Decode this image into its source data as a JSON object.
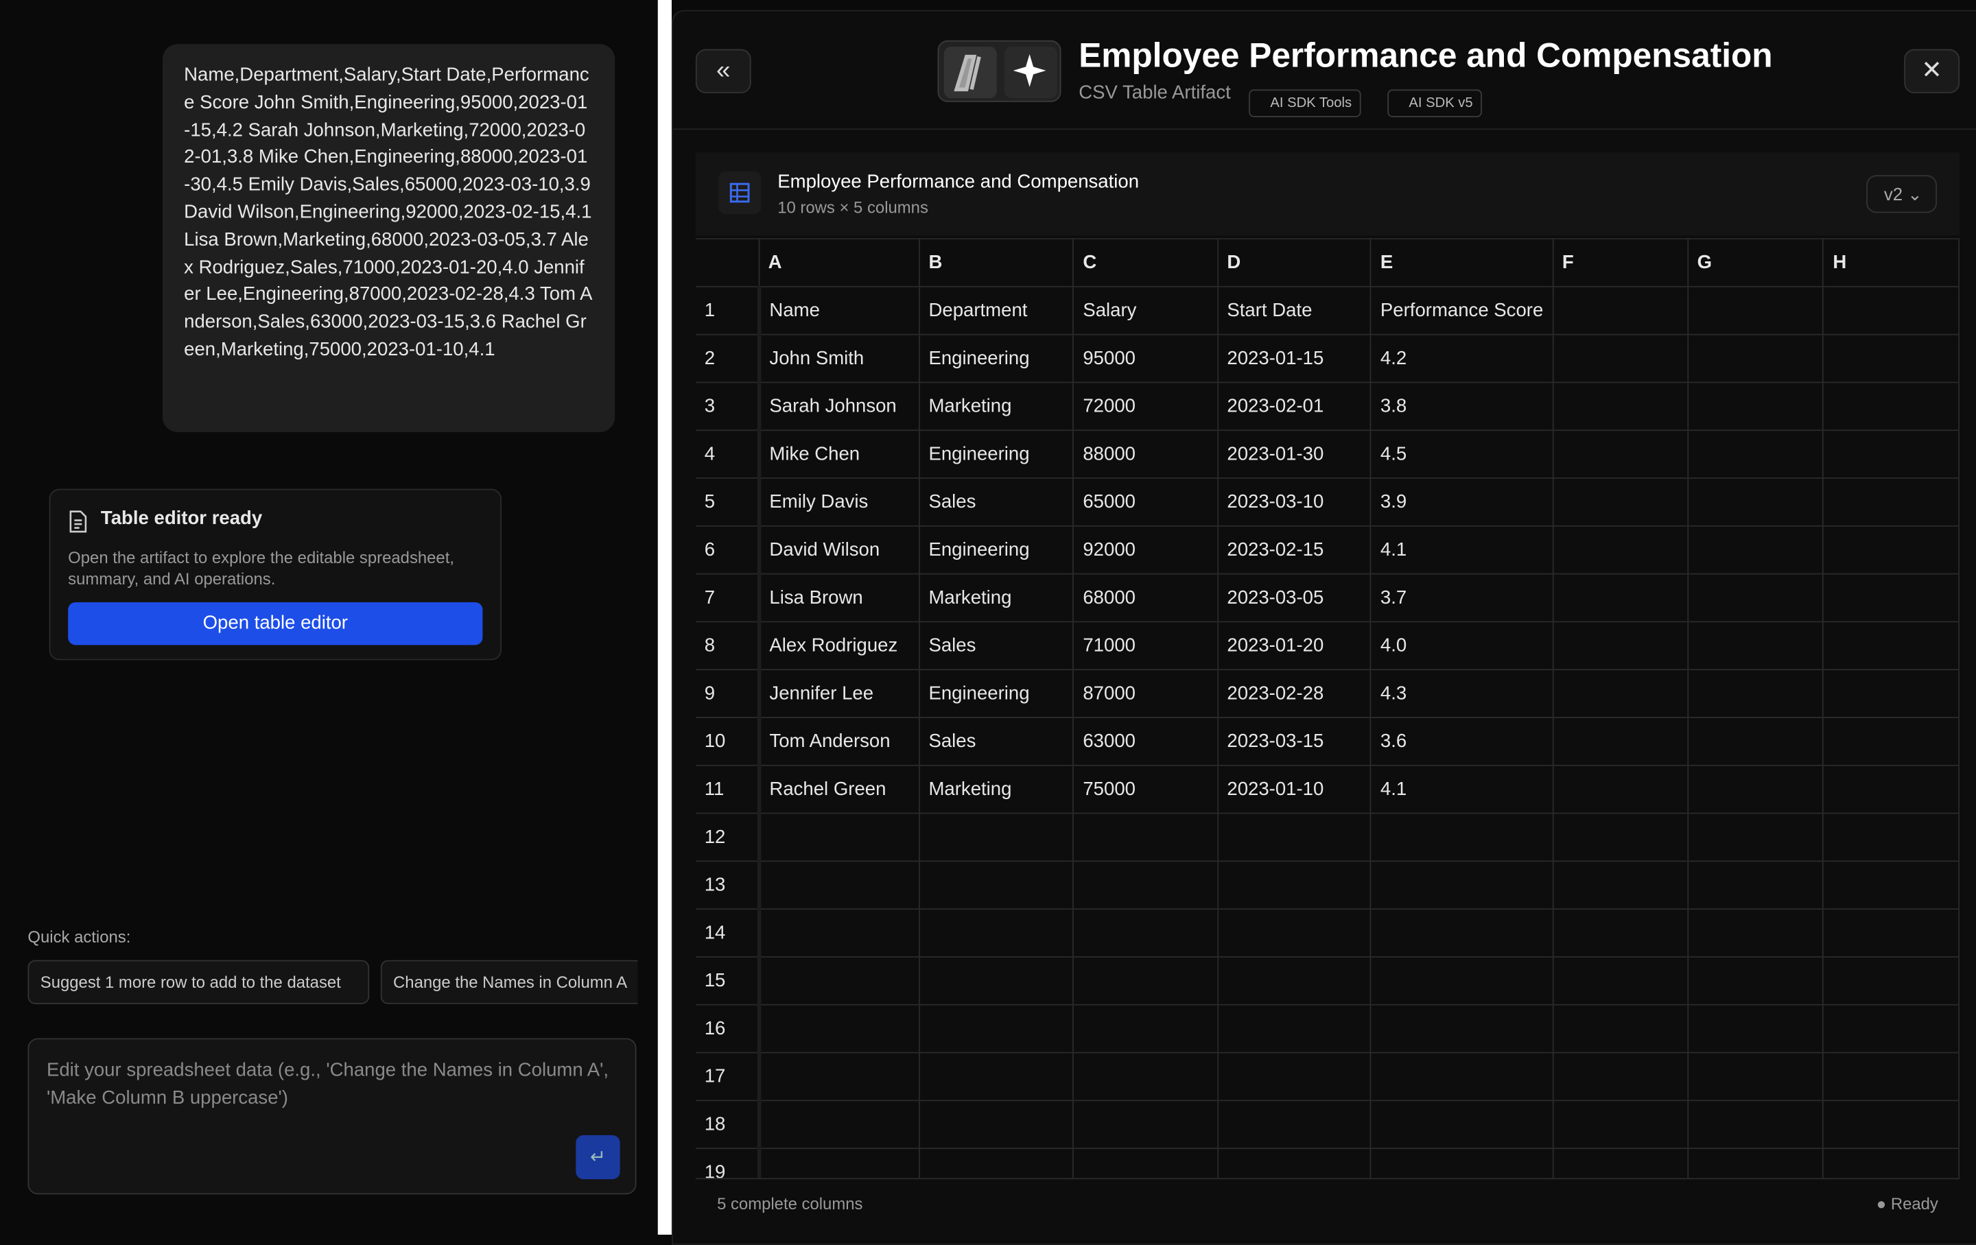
{
  "chat": {
    "message": "Name,Department,Salary,Start Date,Performance Score John Smith,Engineering,95000,2023-01-15,4.2 Sarah Johnson,Marketing,72000,2023-02-01,3.8 Mike Chen,Engineering,88000,2023-01-30,4.5 Emily Davis,Sales,65000,2023-03-10,3.9 David Wilson,Engineering,92000,2023-02-15,4.1 Lisa Brown,Marketing,68000,2023-03-05,3.7 Alex Rodriguez,Sales,71000,2023-01-20,4.0 Jennifer Lee,Engineering,87000,2023-02-28,4.3 Tom Anderson,Sales,63000,2023-03-15,3.6 Rachel Green,Marketing,75000,2023-01-10,4.1"
  },
  "card": {
    "title": "Table editor ready",
    "description": "Open the artifact to explore the editable spreadsheet, summary, and AI operations.",
    "button": "Open table editor"
  },
  "quick_actions": {
    "label": "Quick actions:",
    "items": [
      "Suggest 1 more row to add to the dataset",
      "Change the Names in Column A"
    ]
  },
  "input": {
    "placeholder": "Edit your spreadsheet data (e.g., 'Change the Names in Column A', 'Make Column B uppercase')"
  },
  "artifact": {
    "title": "Employee Performance and Compensation",
    "subtitle": "CSV Table Artifact",
    "badges": [
      "AI SDK Tools",
      "AI SDK v5"
    ]
  },
  "sheet": {
    "title": "Employee Performance and Compensation",
    "meta": "10 rows × 5 columns",
    "version": "v2",
    "columns": [
      "A",
      "B",
      "C",
      "D",
      "E",
      "F",
      "G",
      "H"
    ],
    "row_numbers": [
      1,
      2,
      3,
      4,
      5,
      6,
      7,
      8,
      9,
      10,
      11,
      12,
      13,
      14,
      15,
      16,
      17,
      18,
      19
    ],
    "rows": [
      [
        "Name",
        "Department",
        "Salary",
        "Start Date",
        "Performance Score"
      ],
      [
        "John Smith",
        "Engineering",
        "95000",
        "2023-01-15",
        "4.2"
      ],
      [
        "Sarah Johnson",
        "Marketing",
        "72000",
        "2023-02-01",
        "3.8"
      ],
      [
        "Mike Chen",
        "Engineering",
        "88000",
        "2023-01-30",
        "4.5"
      ],
      [
        "Emily Davis",
        "Sales",
        "65000",
        "2023-03-10",
        "3.9"
      ],
      [
        "David Wilson",
        "Engineering",
        "92000",
        "2023-02-15",
        "4.1"
      ],
      [
        "Lisa Brown",
        "Marketing",
        "68000",
        "2023-03-05",
        "3.7"
      ],
      [
        "Alex Rodriguez",
        "Sales",
        "71000",
        "2023-01-20",
        "4.0"
      ],
      [
        "Jennifer Lee",
        "Engineering",
        "87000",
        "2023-02-28",
        "4.3"
      ],
      [
        "Tom Anderson",
        "Sales",
        "63000",
        "2023-03-15",
        "3.6"
      ],
      [
        "Rachel Green",
        "Marketing",
        "75000",
        "2023-01-10",
        "4.1"
      ]
    ]
  },
  "footer": {
    "status": "5 complete columns",
    "state": "Ready"
  }
}
